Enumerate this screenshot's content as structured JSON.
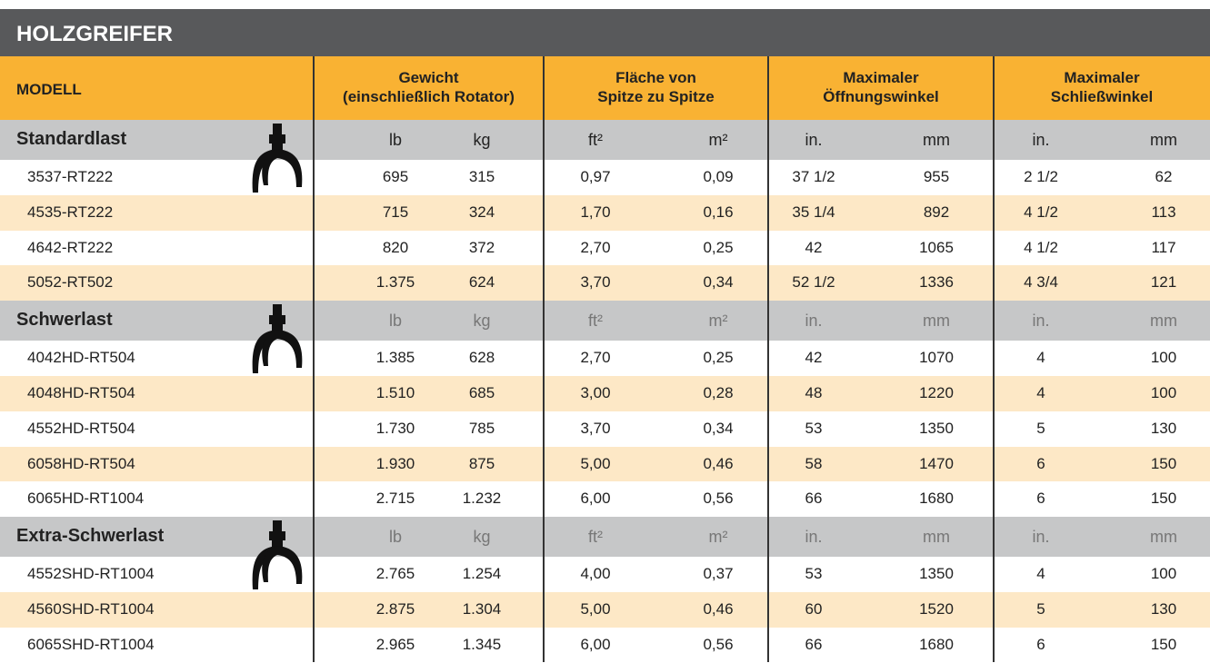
{
  "header": {
    "title": "HOLZGREIFER"
  },
  "table": {
    "header_row": [
      "MODELL",
      [
        "Gewicht",
        "(einschließlich Rotator)"
      ],
      [
        "Fläche von",
        "Spitze zu Spitze"
      ],
      [
        "Maximaler",
        "Öffnungswinkel"
      ],
      [
        "Maximaler",
        "Schließwinkel"
      ]
    ],
    "groups": [
      {
        "name": "Standardlast",
        "units": [
          "lb",
          "kg",
          "ft²",
          "m²",
          "in.",
          "mm",
          "in.",
          "mm"
        ],
        "rows": [
          [
            "3537-RT222",
            "695",
            "315",
            "0,97",
            "0,09",
            "37 1/2",
            "955",
            "2 1/2",
            "62"
          ],
          [
            "4535-RT222",
            "715",
            "324",
            "1,70",
            "0,16",
            "35 1/4",
            "892",
            "4 1/2",
            "113"
          ],
          [
            "4642-RT222",
            "820",
            "372",
            "2,70",
            "0,25",
            "42",
            "1065",
            "4 1/2",
            "117"
          ],
          [
            "5052-RT502",
            "1.375",
            "624",
            "3,70",
            "0,34",
            "52 1/2",
            "1336",
            "4 3/4",
            "121"
          ]
        ]
      },
      {
        "name": "Schwerlast",
        "units": [
          "lb",
          "kg",
          "ft²",
          "m²",
          "in.",
          "mm",
          "in.",
          "mm"
        ],
        "rows": [
          [
            "4042HD-RT504",
            "1.385",
            "628",
            "2,70",
            "0,25",
            "42",
            "1070",
            "4",
            "100"
          ],
          [
            "4048HD-RT504",
            "1.510",
            "685",
            "3,00",
            "0,28",
            "48",
            "1220",
            "4",
            "100"
          ],
          [
            "4552HD-RT504",
            "1.730",
            "785",
            "3,70",
            "0,34",
            "53",
            "1350",
            "5",
            "130"
          ],
          [
            "6058HD-RT504",
            "1.930",
            "875",
            "5,00",
            "0,46",
            "58",
            "1470",
            "6",
            "150"
          ],
          [
            "6065HD-RT1004",
            "2.715",
            "1.232",
            "6,00",
            "0,56",
            "66",
            "1680",
            "6",
            "150"
          ]
        ]
      },
      {
        "name": "Extra-Schwerlast",
        "units": [
          "lb",
          "kg",
          "ft²",
          "m²",
          "in.",
          "mm",
          "in.",
          "mm"
        ],
        "rows": [
          [
            "4552SHD-RT1004",
            "2.765",
            "1.254",
            "4,00",
            "0,37",
            "53",
            "1350",
            "4",
            "100"
          ],
          [
            "4560SHD-RT1004",
            "2.875",
            "1.304",
            "5,00",
            "0,46",
            "60",
            "1520",
            "5",
            "130"
          ],
          [
            "6065SHD-RT1004",
            "2.965",
            "1.345",
            "6,00",
            "0,56",
            "66",
            "1680",
            "6",
            "150"
          ]
        ]
      }
    ]
  }
}
